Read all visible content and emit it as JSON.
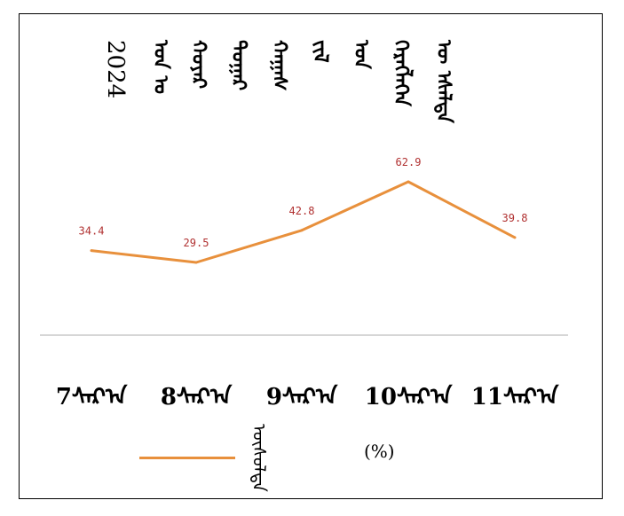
{
  "chart_data": {
    "type": "line",
    "title_columns": [
      "2024",
      "ᠣᠨ ᠤ",
      "ᠬᠣᠶᠠᠷ",
      "ᠳᠤᠭᠠᠷ",
      "ᠬᠠᠭᠠᠰ",
      "ᠵᠢᠯ",
      "ᠤᠨ",
      "ᠬᠡᠷᠡᠭᠯᠡᠭᠡᠨ",
      "ᠦ ᠡᠰᠡᠯᠳᠡ"
    ],
    "categories": [
      "7ᠰᠠᠷ᠎ᠠ",
      "8ᠰᠠᠷ᠎ᠠ",
      "9ᠰᠠᠷ᠎ᠠ",
      "10ᠰᠠᠷ᠎ᠠ",
      "11ᠰᠠᠷ᠎ᠠ"
    ],
    "series": [
      {
        "name": "ᠥᠰᠦᠯᠲᠡ",
        "values": [
          34.4,
          29.5,
          42.8,
          62.9,
          39.8
        ],
        "color": "#e8903c"
      }
    ],
    "data_labels": [
      "34.4",
      "29.5",
      "42.8",
      "62.9",
      "39.8"
    ],
    "legend_unit": "(%)",
    "label_color": "#b03030",
    "axis_color": "#c8c8c8",
    "ylim": [
      0,
      100
    ],
    "grid": false,
    "legend_position": "bottom"
  }
}
